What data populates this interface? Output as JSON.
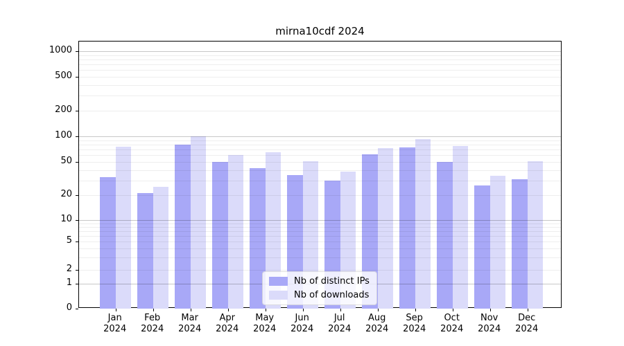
{
  "chart_data": {
    "type": "bar",
    "title": "mirna10cdf 2024",
    "categories": [
      "Jan 2024",
      "Feb 2024",
      "Mar 2024",
      "Apr 2024",
      "May 2024",
      "Jun 2024",
      "Jul 2024",
      "Aug 2024",
      "Sep 2024",
      "Oct 2024",
      "Nov 2024",
      "Dec 2024"
    ],
    "x": {
      "months": [
        "Jan",
        "Feb",
        "Mar",
        "Apr",
        "May",
        "Jun",
        "Jul",
        "Aug",
        "Sep",
        "Oct",
        "Nov",
        "Dec"
      ],
      "year": "2024"
    },
    "series": [
      {
        "name": "Nb of distinct IPs",
        "color": "#a8a8f7",
        "values": [
          33,
          21,
          80,
          50,
          42,
          35,
          30,
          61,
          74,
          50,
          26,
          31
        ]
      },
      {
        "name": "Nb of downloads",
        "color": "#dbdbfa",
        "values": [
          76,
          25,
          100,
          60,
          65,
          51,
          38,
          73,
          93,
          77,
          34,
          51
        ]
      }
    ],
    "y_axis": {
      "scale": "log-with-zero-baseline",
      "ticks": [
        1000,
        500,
        200,
        100,
        50,
        20,
        10,
        5,
        2,
        1,
        0
      ],
      "tick_labels": [
        "1000",
        "500",
        "200",
        "100",
        "50",
        "20",
        "10",
        "5",
        "2",
        "1",
        "0"
      ]
    },
    "grid": {
      "major_values": [
        1,
        10,
        100,
        1000
      ],
      "minor_values": [
        2,
        3,
        4,
        5,
        6,
        7,
        8,
        9,
        20,
        30,
        40,
        50,
        60,
        70,
        80,
        90,
        200,
        300,
        400,
        500,
        600,
        700,
        800,
        900
      ]
    },
    "legend": {
      "position": "inside-bottom-center",
      "entries": [
        "Nb of distinct IPs",
        "Nb of downloads"
      ]
    },
    "colors": {
      "bar_distinct_ips": "#a8a8f7",
      "bar_downloads": "#dbdbfa",
      "grid_major": "#c6c6c6",
      "grid_minor": "#eeeeee",
      "axis": "#000000",
      "legend_background": "rgba(255,255,255,0.8)"
    }
  }
}
